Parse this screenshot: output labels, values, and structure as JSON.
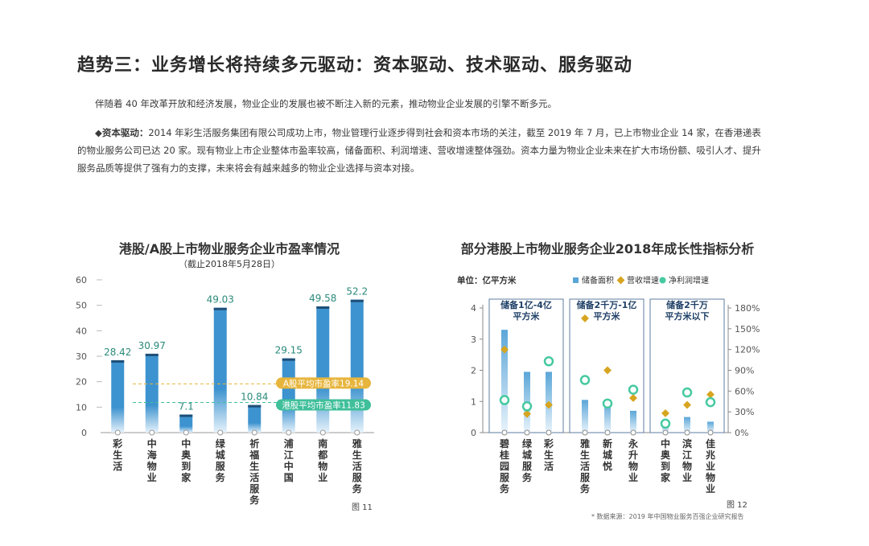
{
  "page": {
    "title": "趋势三：业务增长将持续多元驱动：资本驱动、技术驱动、服务驱动",
    "paragraph1": "伴随着 40 年改革开放和经济发展，物业企业的发展也被不断注入新的元素，推动物业企业发展的引擎不断多元。",
    "paragraph2_lead": "◆资本驱动：",
    "paragraph2_body": "2014 年彩生活服务集团有限公司成功上市，物业管理行业逐步得到社会和资本市场的关注，截至 2019 年 7 月，已上市物业企业 14 家，在香港递表的物业服务公司已达 20 家。现有物业上市企业整体市盈率较高，储备面积、利润增速、营收增速整体强劲。资本力量为物业企业未来在扩大市场份额、吸引人才、提升服务品质等提供了强有力的支撑，未来将会有越来越多的物业企业选择与资本对接。"
  },
  "chart_left": {
    "title": "港股/A股上市物业服务企业市盈率情况",
    "subtitle": "（截止2018年5月28日）",
    "figure_label": "图 11"
  },
  "chart_right": {
    "title": "部分港股上市物业服务企业2018年成长性指标分析",
    "figure_label": "图 12",
    "source": "* 数据来源：2019 年中国物业服务百强企业研究报告"
  },
  "chart_data": [
    {
      "type": "bar",
      "title": "港股/A股上市物业服务企业市盈率情况",
      "subtitle": "（截止2018年5月28日）",
      "categories": [
        "彩生活",
        "中海物业",
        "中奥到家",
        "绿城服务",
        "祈福生活服务",
        "浦江中国",
        "南都物业",
        "雅生活服务"
      ],
      "values": [
        28.42,
        30.97,
        7.1,
        49.03,
        10.84,
        29.15,
        49.58,
        52.2
      ],
      "value_labels": [
        "28.42",
        "30.97",
        "7.1",
        "49.03",
        "10.84",
        "29.15",
        "49.58",
        "52.2"
      ],
      "yticks": [
        0,
        10,
        20,
        30,
        40,
        50,
        60
      ],
      "ylim": [
        0,
        60
      ],
      "reference_lines": [
        {
          "label": "A股平均市盈率19.14",
          "value": 19.14,
          "color": "#e7b53c"
        },
        {
          "label": "港股平均市盈率11.83",
          "value": 11.83,
          "color": "#3fbf9a"
        }
      ],
      "bar_color": "#3d93cf",
      "bar_top_color": "#1e4f78"
    },
    {
      "type": "bar",
      "title": "部分港股上市物业服务企业2018年成长性指标分析",
      "unit_label": "单位：亿平方米",
      "legend": [
        {
          "name": "储备面积",
          "color": "#5ba6d8"
        },
        {
          "name": "营收增速",
          "color": "#d7a520"
        },
        {
          "name": "净利润增速",
          "color": "#46c9a0"
        }
      ],
      "groups": [
        {
          "label": "储备1亿-4亿平方米",
          "categories": [
            "碧桂园服务",
            "绿城服务",
            "彩生活"
          ]
        },
        {
          "label": "储备2千万-1亿平方米",
          "categories": [
            "雅生活服务",
            "新城悦",
            "永升物业"
          ]
        },
        {
          "label": "储备2千万平方米以下",
          "categories": [
            "中奥到家",
            "滨江物业",
            "佳兆业物业"
          ]
        }
      ],
      "categories": [
        "碧桂园服务",
        "绿城服务",
        "彩生活",
        "雅生活服务",
        "新城悦",
        "永升物业",
        "中奥到家",
        "滨江物业",
        "佳兆业物业"
      ],
      "series": [
        {
          "name": "储备面积",
          "axis": "left",
          "values": [
            3.3,
            1.95,
            1.95,
            1.05,
            1.0,
            0.7,
            0.4,
            0.5,
            0.35
          ]
        },
        {
          "name": "营收增速",
          "axis": "right",
          "values": [
            120,
            27,
            40,
            165,
            90,
            50,
            28,
            40,
            55
          ]
        },
        {
          "name": "净利润增速",
          "axis": "right",
          "values": [
            47,
            38,
            103,
            76,
            42,
            62,
            13,
            58,
            44
          ]
        }
      ],
      "left_yticks": [
        0,
        1,
        2,
        3,
        4
      ],
      "left_ylim": [
        0,
        4
      ],
      "right_yticks": [
        "0%",
        "30%",
        "60%",
        "90%",
        "120%",
        "150%",
        "180%"
      ],
      "right_ylim": [
        0,
        180
      ]
    }
  ]
}
